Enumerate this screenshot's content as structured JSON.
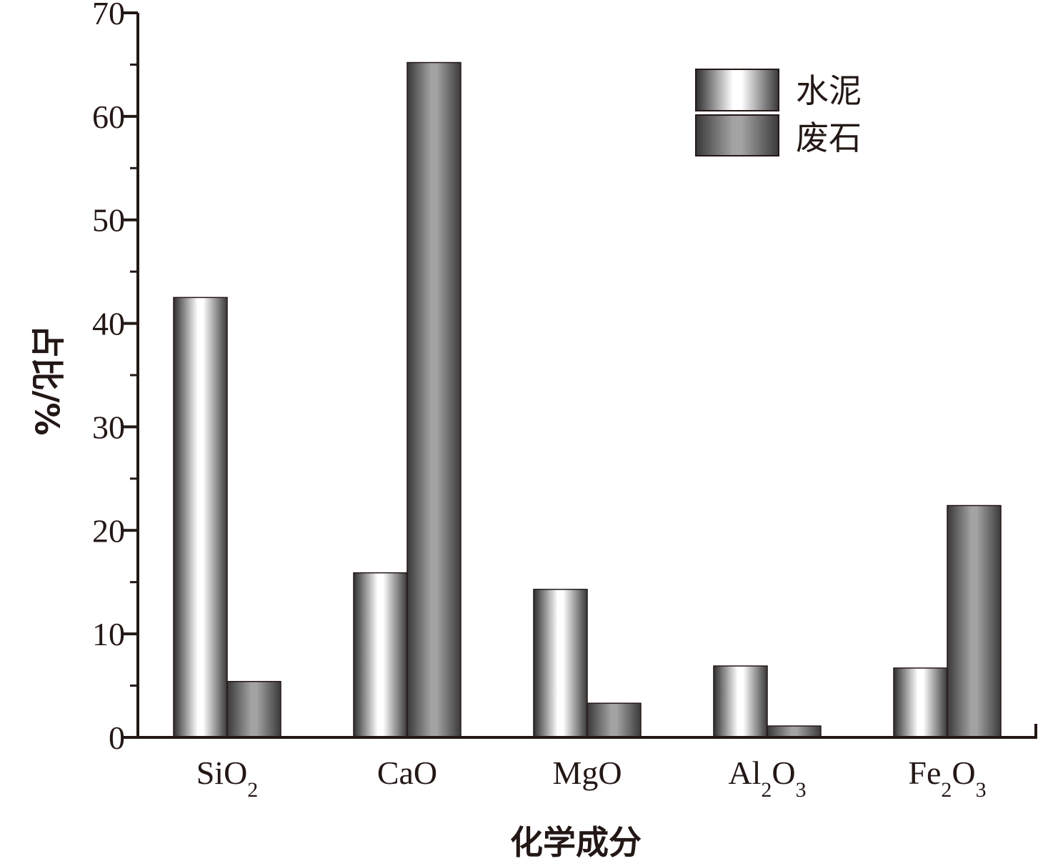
{
  "chart_data": {
    "type": "bar",
    "categories": [
      {
        "base": "SiO",
        "parts": [
          {
            "t": "SiO",
            "sub": false
          },
          {
            "t": "2",
            "sub": true
          }
        ]
      },
      {
        "base": "CaO",
        "parts": [
          {
            "t": "CaO",
            "sub": false
          }
        ]
      },
      {
        "base": "MgO",
        "parts": [
          {
            "t": "MgO",
            "sub": false
          }
        ]
      },
      {
        "base": "Al2O3",
        "parts": [
          {
            "t": "Al",
            "sub": false
          },
          {
            "t": "2",
            "sub": true
          },
          {
            "t": "O",
            "sub": false
          },
          {
            "t": "3",
            "sub": true
          }
        ]
      },
      {
        "base": "Fe2O3",
        "parts": [
          {
            "t": "Fe",
            "sub": false
          },
          {
            "t": "2",
            "sub": true
          },
          {
            "t": "O",
            "sub": false
          },
          {
            "t": "3",
            "sub": true
          }
        ]
      }
    ],
    "series": [
      {
        "name": "水泥",
        "values": [
          42.5,
          15.9,
          14.3,
          6.9,
          6.7
        ]
      },
      {
        "name": "废石",
        "values": [
          5.4,
          65.2,
          3.3,
          1.1,
          22.4
        ]
      }
    ],
    "xlabel": "化学成分",
    "ylabel": "占比/%",
    "ylim": [
      0,
      70
    ],
    "yticks": [
      0,
      10,
      20,
      30,
      40,
      50,
      60,
      70
    ],
    "legend_position": "top-right",
    "grid": false,
    "colors": {
      "axis": "#231815",
      "series1_edge": "#3a3a3a",
      "series1_center": "#ffffff",
      "series2_edge": "#3c3c3c",
      "series2_center": "#a0a0a0"
    }
  }
}
